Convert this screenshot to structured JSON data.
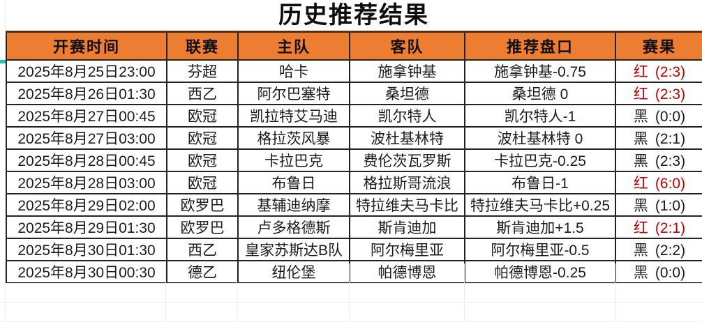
{
  "title": "历史推荐结果",
  "table": {
    "columns": [
      {
        "key": "time",
        "label": "开赛时间"
      },
      {
        "key": "league",
        "label": "联赛"
      },
      {
        "key": "home",
        "label": "主队"
      },
      {
        "key": "away",
        "label": "客队"
      },
      {
        "key": "handicap",
        "label": "推荐盘口"
      },
      {
        "key": "result",
        "label": "赛果"
      }
    ],
    "rows": [
      {
        "time": "2025年8月25日23:00",
        "league": "芬超",
        "home": "哈卡",
        "away": "施拿钟基",
        "handicap": "施拿钟基-0.75",
        "result": {
          "outcome": "红",
          "score": "(2:3)",
          "hit": true
        }
      },
      {
        "time": "2025年8月26日01:30",
        "league": "西乙",
        "home": "阿尔巴塞特",
        "away": "桑坦德",
        "handicap": "桑坦德 0",
        "result": {
          "outcome": "红",
          "score": "(2:3)",
          "hit": true
        }
      },
      {
        "time": "2025年8月27日00:45",
        "league": "欧冠",
        "home": "凯拉特艾马迪",
        "away": "凯尔特人",
        "handicap": "凯尔特人-1",
        "result": {
          "outcome": "黑",
          "score": "(0:0)",
          "hit": false
        }
      },
      {
        "time": "2025年8月27日03:00",
        "league": "欧冠",
        "home": "格拉茨风暴",
        "away": "波杜基林特",
        "handicap": "波杜基林特 0",
        "result": {
          "outcome": "黑",
          "score": "(2:1)",
          "hit": false
        }
      },
      {
        "time": "2025年8月28日00:45",
        "league": "欧冠",
        "home": "卡拉巴克",
        "away": "费伦茨瓦罗斯",
        "handicap": "卡拉巴克-0.25",
        "result": {
          "outcome": "黑",
          "score": "(2:3)",
          "hit": false
        }
      },
      {
        "time": "2025年8月28日03:00",
        "league": "欧冠",
        "home": "布鲁日",
        "away": "格拉斯哥流浪",
        "handicap": "布鲁日-1",
        "result": {
          "outcome": "红",
          "score": "(6:0)",
          "hit": true
        }
      },
      {
        "time": "2025年8月29日02:00",
        "league": "欧罗巴",
        "home": "基辅迪纳摩",
        "away": "特拉维夫马卡比",
        "handicap": "特拉维夫马卡比+0.25",
        "result": {
          "outcome": "黑",
          "score": "(1:0)",
          "hit": false
        }
      },
      {
        "time": "2025年8月29日01:30",
        "league": "欧罗巴",
        "home": "卢多格德斯",
        "away": "斯肯迪加",
        "handicap": "斯肯迪加+1.5",
        "result": {
          "outcome": "红",
          "score": "(2:1)",
          "hit": true
        }
      },
      {
        "time": "2025年8月30日01:30",
        "league": "西乙",
        "home": "皇家苏斯达B队",
        "away": "阿尔梅里亚",
        "handicap": "阿尔梅里亚-0.5",
        "result": {
          "outcome": "黑",
          "score": "(2:2)",
          "hit": false
        }
      },
      {
        "time": "2025年8月30日00:30",
        "league": "德乙",
        "home": "纽伦堡",
        "away": "帕德博恩",
        "handicap": "帕德博恩-0.25",
        "result": {
          "outcome": "黑",
          "score": "(0:0)",
          "hit": false
        }
      }
    ],
    "empty_row_count": 3
  },
  "colors": {
    "header_bg": "#ED7D31",
    "top_border": "#4A3120",
    "grid_border": "#242424",
    "hit_red": "#C00000",
    "text": "#1B1B1B",
    "faint_grid": "#EBEBEB",
    "teal_mark": "#2EBFA5"
  }
}
